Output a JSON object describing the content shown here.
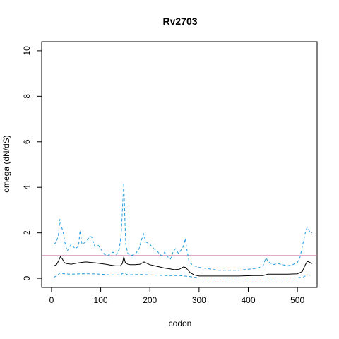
{
  "chart_data": {
    "type": "line",
    "title": "Rv2703",
    "xlabel": "codon",
    "ylabel": "omega (dN/dS)",
    "xlim": [
      -20,
      540
    ],
    "ylim": [
      -0.4,
      10.4
    ],
    "xticks": [
      0,
      100,
      200,
      300,
      400,
      500
    ],
    "yticks": [
      0,
      2,
      4,
      6,
      8,
      10
    ],
    "reference_line": {
      "y": 1,
      "color": "#cc79a7"
    },
    "grid": false,
    "colors": {
      "estimate": "#000000",
      "bounds": "#1f9bde"
    },
    "series": [
      {
        "role": "estimate",
        "style": "solid",
        "x": [
          5,
          10,
          14,
          18,
          22,
          26,
          30,
          40,
          50,
          60,
          70,
          80,
          90,
          100,
          110,
          120,
          130,
          140,
          144,
          147,
          150,
          155,
          160,
          170,
          180,
          188,
          195,
          200,
          210,
          220,
          230,
          240,
          250,
          260,
          268,
          272,
          276,
          282,
          290,
          300,
          320,
          350,
          380,
          410,
          430,
          440,
          460,
          480,
          500,
          510,
          515,
          520,
          525,
          530
        ],
        "y": [
          0.55,
          0.6,
          0.75,
          0.95,
          0.85,
          0.7,
          0.65,
          0.62,
          0.66,
          0.7,
          0.72,
          0.7,
          0.68,
          0.65,
          0.62,
          0.58,
          0.55,
          0.55,
          0.65,
          0.95,
          0.7,
          0.62,
          0.6,
          0.6,
          0.62,
          0.72,
          0.65,
          0.6,
          0.55,
          0.5,
          0.45,
          0.42,
          0.38,
          0.4,
          0.5,
          0.48,
          0.4,
          0.25,
          0.15,
          0.1,
          0.1,
          0.1,
          0.1,
          0.12,
          0.12,
          0.18,
          0.18,
          0.18,
          0.2,
          0.3,
          0.55,
          0.75,
          0.7,
          0.65
        ]
      },
      {
        "role": "upper",
        "style": "dashed",
        "x": [
          5,
          10,
          14,
          17,
          20,
          24,
          28,
          32,
          40,
          48,
          55,
          58,
          62,
          70,
          78,
          82,
          88,
          95,
          100,
          108,
          115,
          120,
          125,
          132,
          138,
          142,
          145,
          147,
          149,
          151,
          155,
          160,
          170,
          178,
          183,
          187,
          192,
          200,
          208,
          215,
          220,
          225,
          230,
          236,
          242,
          248,
          252,
          258,
          262,
          268,
          272,
          275,
          280,
          290,
          300,
          320,
          340,
          360,
          380,
          400,
          420,
          430,
          436,
          440,
          450,
          460,
          470,
          480,
          490,
          500,
          505,
          510,
          514,
          517,
          520,
          525,
          530
        ],
        "y": [
          1.5,
          1.6,
          1.9,
          2.6,
          2.3,
          2.0,
          1.5,
          1.2,
          1.5,
          1.3,
          1.4,
          2.1,
          1.5,
          1.6,
          1.85,
          1.8,
          1.4,
          1.45,
          1.3,
          1.05,
          1.0,
          1.1,
          1.15,
          1.05,
          1.3,
          2.0,
          3.4,
          4.2,
          2.7,
          1.5,
          1.1,
          1.0,
          1.05,
          1.3,
          1.7,
          1.95,
          1.6,
          1.5,
          1.3,
          1.2,
          1.05,
          1.0,
          1.15,
          0.95,
          0.85,
          1.2,
          1.3,
          1.1,
          1.2,
          1.4,
          1.75,
          1.3,
          0.7,
          0.55,
          0.48,
          0.42,
          0.35,
          0.35,
          0.35,
          0.4,
          0.45,
          0.55,
          0.9,
          0.75,
          0.6,
          0.65,
          0.6,
          0.55,
          0.6,
          0.7,
          0.9,
          1.4,
          1.8,
          2.1,
          2.25,
          2.05,
          2.0
        ]
      },
      {
        "role": "lower",
        "style": "dashed",
        "x": [
          5,
          10,
          18,
          25,
          40,
          60,
          80,
          100,
          120,
          140,
          147,
          155,
          180,
          200,
          230,
          260,
          280,
          300,
          350,
          400,
          450,
          500,
          512,
          520,
          530
        ],
        "y": [
          0.05,
          0.1,
          0.25,
          0.2,
          0.18,
          0.2,
          0.2,
          0.18,
          0.15,
          0.15,
          0.25,
          0.15,
          0.17,
          0.15,
          0.12,
          0.12,
          0.08,
          0.02,
          0.02,
          0.02,
          0.02,
          0.02,
          0.06,
          0.15,
          0.12
        ]
      }
    ]
  }
}
